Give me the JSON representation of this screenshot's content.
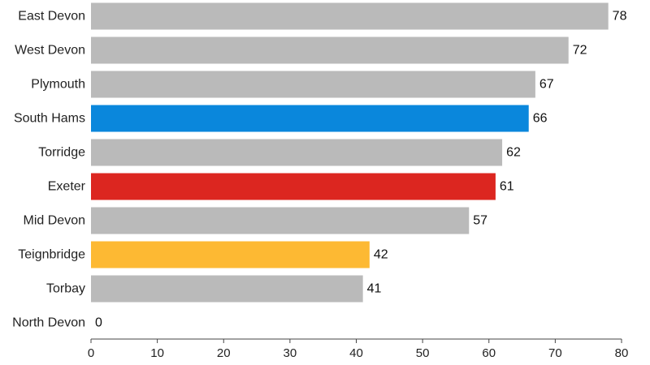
{
  "chart_data": {
    "type": "bar",
    "orientation": "horizontal",
    "title": "",
    "xlabel": "",
    "ylabel": "",
    "categories": [
      "East Devon",
      "West Devon",
      "Plymouth",
      "South Hams",
      "Torridge",
      "Exeter",
      "Mid Devon",
      "Teignbridge",
      "Torbay",
      "North Devon"
    ],
    "values": [
      78,
      72,
      67,
      66,
      62,
      61,
      57,
      42,
      41,
      0
    ],
    "colors": [
      "#bababa",
      "#bababa",
      "#bababa",
      "#0a87dc",
      "#bababa",
      "#dc2620",
      "#bababa",
      "#fdb933",
      "#bababa",
      "#bababa"
    ],
    "xlim": [
      0,
      80
    ],
    "xticks": [
      0,
      10,
      20,
      30,
      40,
      50,
      60,
      70,
      80
    ],
    "grid": false,
    "data_labels": true
  }
}
